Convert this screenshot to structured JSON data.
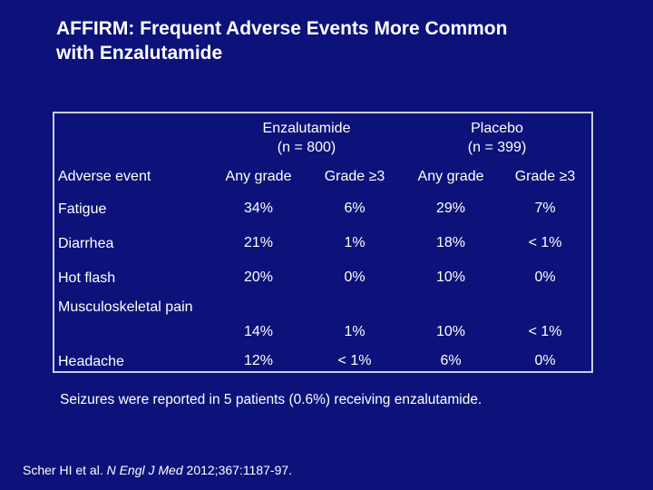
{
  "title": {
    "line1": "AFFIRM: Frequent Adverse Events More Common",
    "line2": "with Enzalutamide"
  },
  "table": {
    "groups": [
      {
        "name": "Enzalutamide",
        "n": "(n = 800)"
      },
      {
        "name": "Placebo",
        "n": "(n = 399)"
      }
    ],
    "headers": [
      "Adverse event",
      "Any grade",
      "Grade ≥3",
      "Any grade",
      "Grade ≥3"
    ],
    "rows": [
      {
        "event": "Fatigue",
        "values": [
          "34%",
          "6%",
          "29%",
          "7%"
        ]
      },
      {
        "event": "Diarrhea",
        "values": [
          "21%",
          "1%",
          "18%",
          "< 1%"
        ]
      },
      {
        "event": "Hot flash",
        "values": [
          "20%",
          "0%",
          "10%",
          "0%"
        ]
      },
      {
        "event": "Musculoskeletal pain",
        "values": [
          "14%",
          "1%",
          "10%",
          "< 1%"
        ]
      },
      {
        "event": "Headache",
        "values": [
          "12%",
          "< 1%",
          "6%",
          "0%"
        ]
      }
    ]
  },
  "note": "Seizures were reported in 5 patients (0.6%) receiving enzalutamide.",
  "citation": {
    "authors": "Scher HI et al.",
    "journal": "N Engl J Med",
    "details": "2012;367:1187-97."
  }
}
